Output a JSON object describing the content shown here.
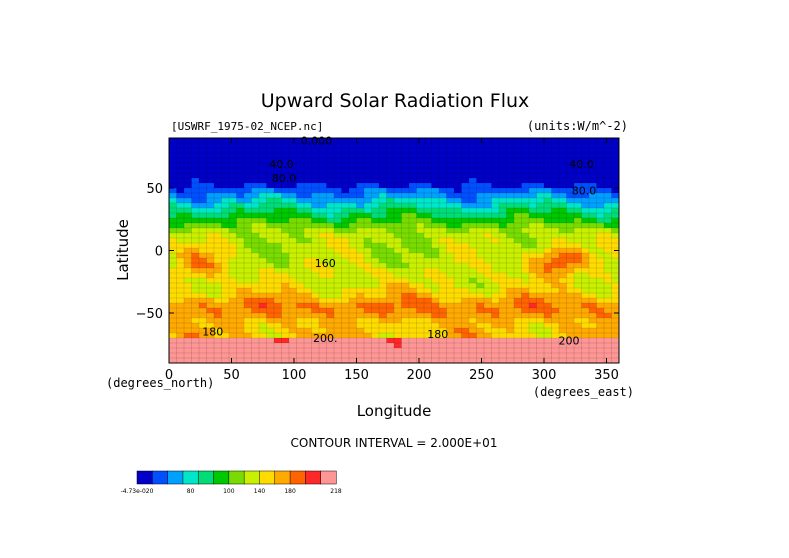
{
  "chart_data": {
    "type": "heatmap",
    "title": "Upward Solar Radiation Flux",
    "subtitle_left": "[USWRF_1975-02_NCEP.nc]",
    "subtitle_right": "(units:W/m^-2)",
    "xlabel": "Longitude",
    "ylabel": "Latitude",
    "x_unit_label": "(degrees_east)",
    "y_unit_label": "(degrees_north)",
    "xlim": [
      0,
      360
    ],
    "ylim": [
      -90,
      90
    ],
    "x_ticks": [
      0,
      50,
      100,
      150,
      200,
      250,
      300,
      350
    ],
    "y_ticks": [
      50,
      0,
      -50
    ],
    "contour_interval_text": "CONTOUR INTERVAL = 2.000E+01",
    "contour_labels": [
      {
        "text": "0.000",
        "lon": 118,
        "lat": 85
      },
      {
        "text": "40.0",
        "lon": 90,
        "lat": 66
      },
      {
        "text": "80.0",
        "lon": 92,
        "lat": 55
      },
      {
        "text": "40.0",
        "lon": 330,
        "lat": 66
      },
      {
        "text": "80.0",
        "lon": 332,
        "lat": 45
      },
      {
        "text": "160",
        "lon": 125,
        "lat": -13
      },
      {
        "text": "200.",
        "lon": 125,
        "lat": -73
      },
      {
        "text": "180",
        "lon": 35,
        "lat": -68
      },
      {
        "text": "180",
        "lon": 215,
        "lat": -70
      },
      {
        "text": "200",
        "lon": 320,
        "lat": -75
      }
    ],
    "colorbar": {
      "colors": [
        "#0000c8",
        "#0050ff",
        "#00a0ff",
        "#00e6c8",
        "#00dc78",
        "#00c800",
        "#78dc00",
        "#c8f000",
        "#ffdc00",
        "#ffaa00",
        "#ff6400",
        "#ff2828",
        "#ff9696"
      ],
      "tick_labels": [
        "-4.73e-020",
        "80",
        "100",
        "140",
        "180",
        "218"
      ]
    }
  }
}
